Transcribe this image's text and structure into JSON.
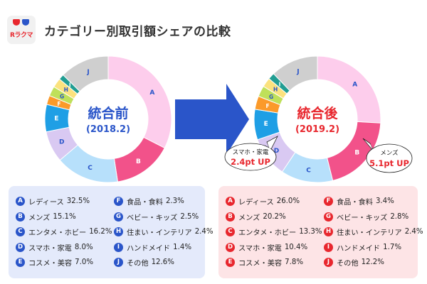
{
  "header": {
    "logo_text": "Rラクマ",
    "title": "カテゴリー別取引額シェアの比較"
  },
  "colors": {
    "A": "#fdcdec",
    "B": "#f2528a",
    "C": "#b7e0fb",
    "D": "#d9c9f2",
    "E": "#1f9fe5",
    "F": "#fb9a2a",
    "G": "#bfe05a",
    "H": "#fbe27e",
    "I": "#219d92",
    "J": "#cfcfcf",
    "before_center": "#2a55c9",
    "after_center": "#e8272e",
    "arrow": "#2a55c9"
  },
  "chart_data": [
    {
      "type": "pie",
      "title": "統合前",
      "subtitle": "(2018.2)",
      "categories": [
        "A",
        "B",
        "C",
        "D",
        "E",
        "F",
        "G",
        "H",
        "I",
        "J"
      ],
      "values": [
        32.5,
        15.1,
        16.2,
        8.0,
        7.0,
        2.3,
        2.5,
        2.4,
        1.4,
        12.6
      ],
      "labels": [
        "レディース",
        "メンズ",
        "エンタメ・ホビー",
        "スマホ・家電",
        "コスメ・美容",
        "食品・食料",
        "ベビー・キッズ",
        "住まい・インテリア",
        "ハンドメイド",
        "その他"
      ]
    },
    {
      "type": "pie",
      "title": "統合後",
      "subtitle": "(2019.2)",
      "categories": [
        "A",
        "B",
        "C",
        "D",
        "E",
        "F",
        "G",
        "H",
        "I",
        "J"
      ],
      "values": [
        26.0,
        20.2,
        13.3,
        10.4,
        7.8,
        3.4,
        2.8,
        2.4,
        1.7,
        12.2
      ],
      "labels": [
        "レディース",
        "メンズ",
        "エンタメ・ホビー",
        "スマホ・家電",
        "コスメ・美容",
        "食品・食料",
        "ベビー・キッズ",
        "住まい・インテリア",
        "ハンドメイド",
        "その他"
      ]
    }
  ],
  "callouts": {
    "left": {
      "label": "スマホ・家電",
      "value": "2.4pt UP"
    },
    "right": {
      "label": "メンズ",
      "value": "5.1pt UP"
    }
  },
  "legend_before": [
    {
      "key": "A",
      "label": "レディース",
      "value": "32.5%"
    },
    {
      "key": "B",
      "label": "メンズ",
      "value": "15.1%"
    },
    {
      "key": "C",
      "label": "エンタメ・ホビー",
      "value": "16.2%"
    },
    {
      "key": "D",
      "label": "スマホ・家電",
      "value": "8.0%"
    },
    {
      "key": "E",
      "label": "コスメ・美容",
      "value": "7.0%"
    },
    {
      "key": "F",
      "label": "食品・食料",
      "value": "2.3%"
    },
    {
      "key": "G",
      "label": "ベビー・キッズ",
      "value": "2.5%"
    },
    {
      "key": "H",
      "label": "住まい・インテリア",
      "value": "2.4%"
    },
    {
      "key": "I",
      "label": "ハンドメイド",
      "value": "1.4%"
    },
    {
      "key": "J",
      "label": "その他",
      "value": "12.6%"
    }
  ],
  "legend_after": [
    {
      "key": "A",
      "label": "レディース",
      "value": "26.0%"
    },
    {
      "key": "B",
      "label": "メンズ",
      "value": "20.2%"
    },
    {
      "key": "C",
      "label": "エンタメ・ホビー",
      "value": "13.3%"
    },
    {
      "key": "D",
      "label": "スマホ・家電",
      "value": "10.4%"
    },
    {
      "key": "E",
      "label": "コスメ・美容",
      "value": "7.8%"
    },
    {
      "key": "F",
      "label": "食品・食料",
      "value": "3.4%"
    },
    {
      "key": "G",
      "label": "ベビー・キッズ",
      "value": "2.8%"
    },
    {
      "key": "H",
      "label": "住まい・インテリア",
      "value": "2.4%"
    },
    {
      "key": "I",
      "label": "ハンドメイド",
      "value": "1.7%"
    },
    {
      "key": "J",
      "label": "その他",
      "value": "12.2%"
    }
  ]
}
